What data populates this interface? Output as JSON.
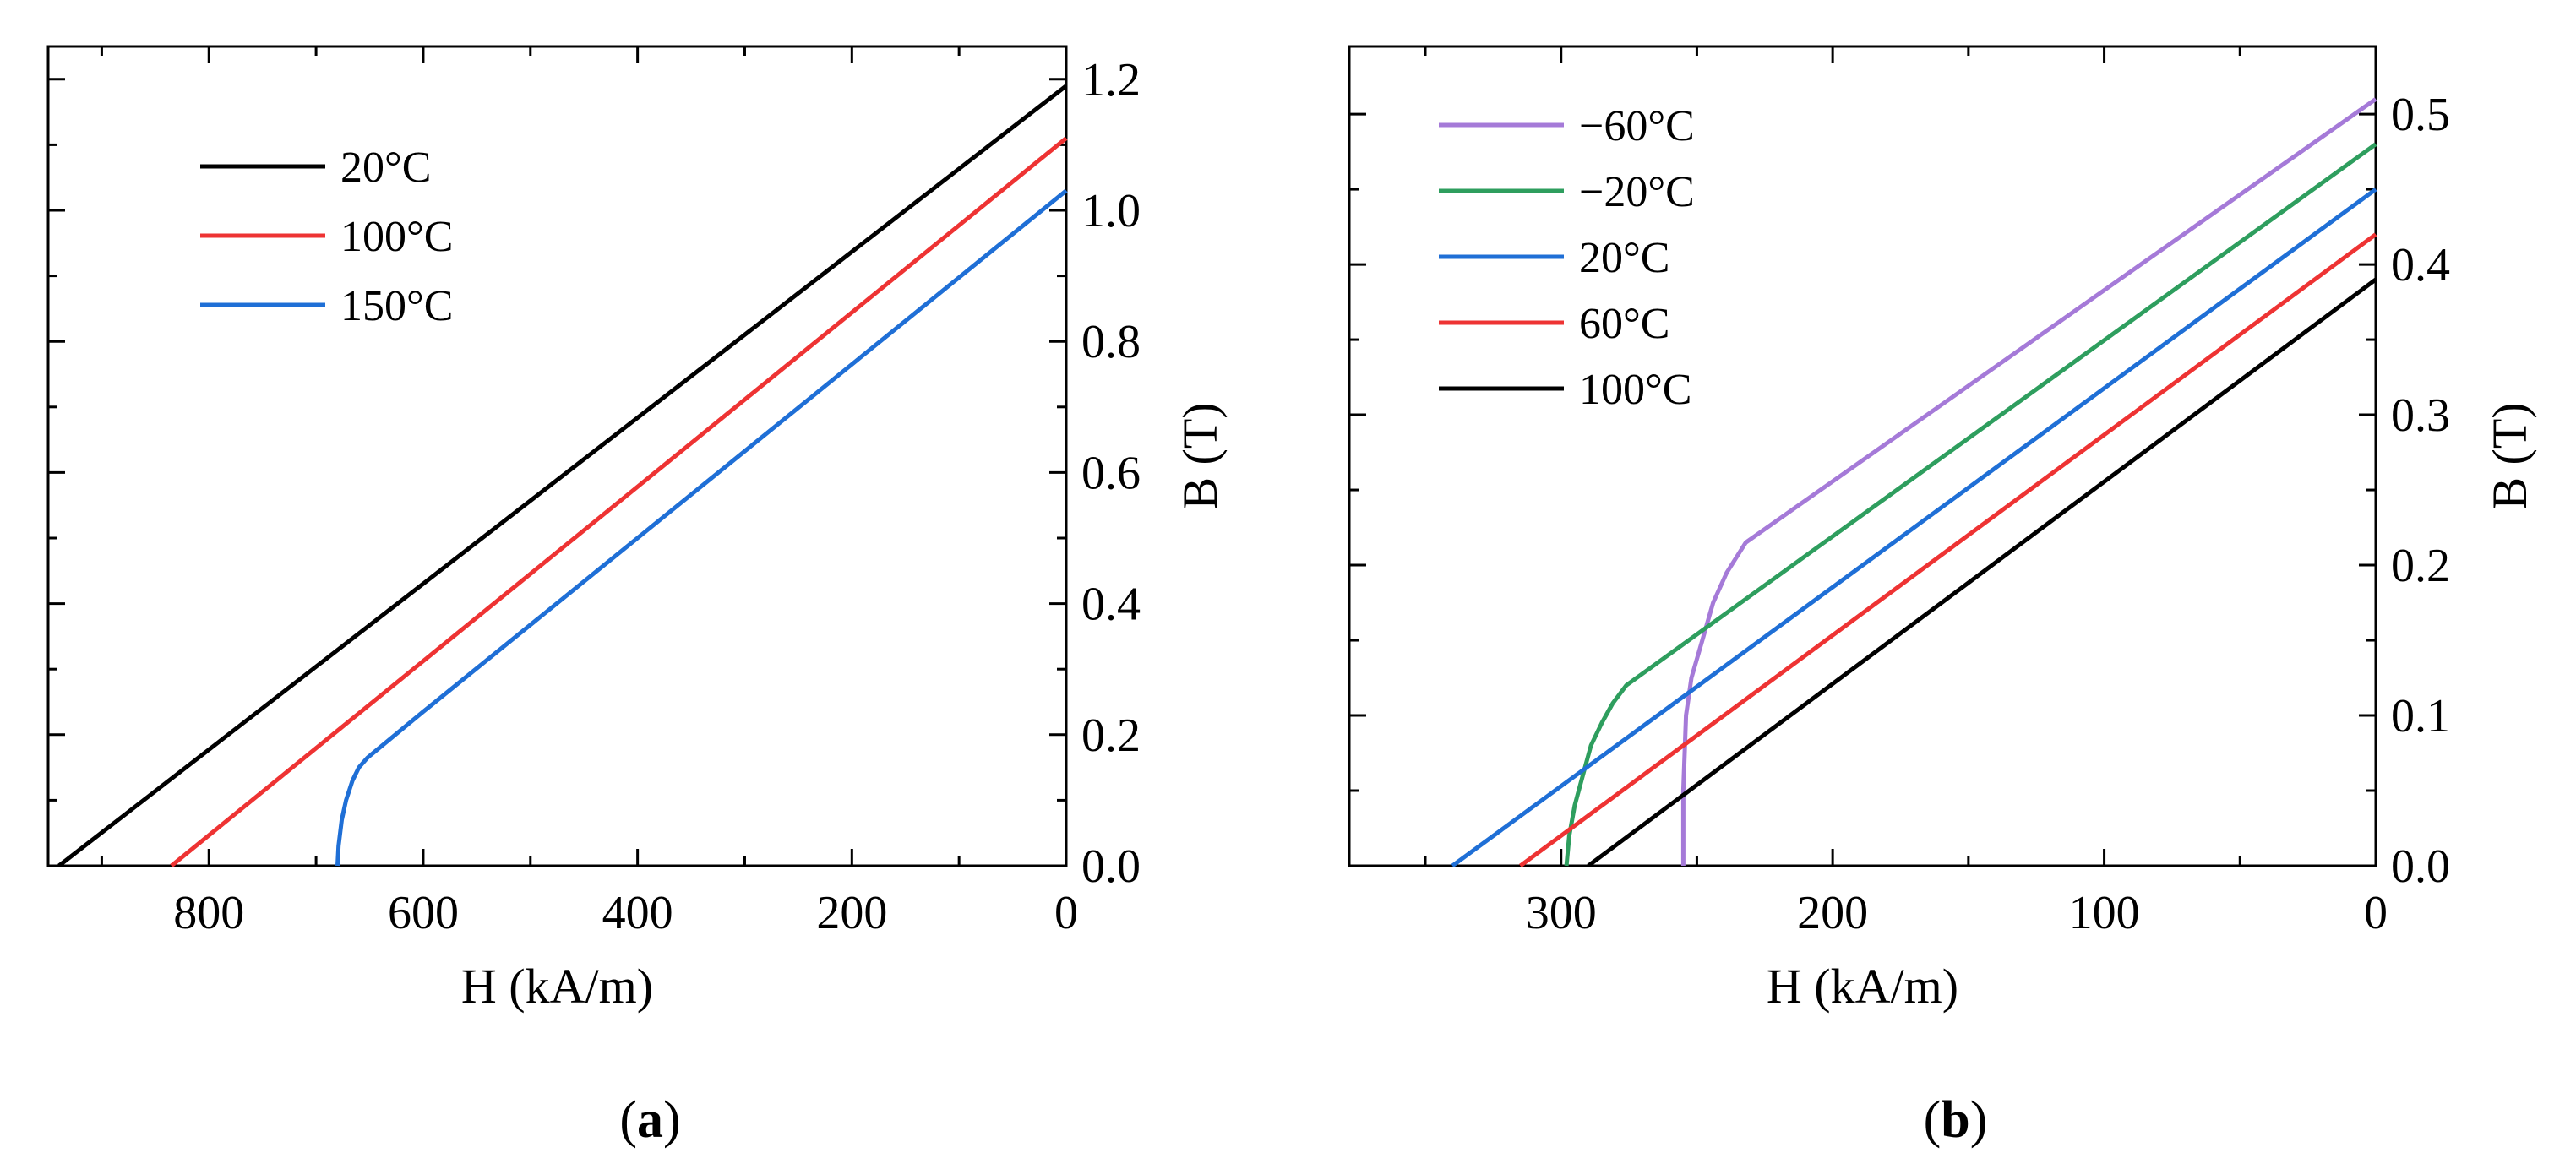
{
  "chart_data": [
    {
      "type": "line",
      "panel_label": "a",
      "xlabel": "H (kA/m)",
      "ylabel": "B (T)",
      "xlim": [
        950,
        0
      ],
      "ylim": [
        0,
        1.25
      ],
      "x_ticks": [
        "800",
        "600",
        "400",
        "200",
        "0"
      ],
      "x_tick_values": [
        800,
        600,
        400,
        200,
        0
      ],
      "x_minor_values": [
        900,
        700,
        500,
        300,
        100
      ],
      "y_ticks": [
        "0.0",
        "0.2",
        "0.4",
        "0.6",
        "0.8",
        "1.0",
        "1.2"
      ],
      "y_tick_values": [
        0,
        0.2,
        0.4,
        0.6,
        0.8,
        1.0,
        1.2
      ],
      "y_minor_values": [
        0.1,
        0.3,
        0.5,
        0.7,
        0.9,
        1.1
      ],
      "series": [
        {
          "name": "20°C",
          "color": "#000000",
          "x": [
            940,
            0
          ],
          "y": [
            0,
            1.19
          ]
        },
        {
          "name": "100°C",
          "color": "#ee3333",
          "x": [
            835,
            0
          ],
          "y": [
            0,
            1.11
          ]
        },
        {
          "name": "150°C",
          "color": "#1f6fd6",
          "x": [
            680,
            679,
            676,
            672,
            666,
            660,
            652,
            600,
            0
          ],
          "y": [
            0,
            0.03,
            0.07,
            0.1,
            0.13,
            0.15,
            0.165,
            0.235,
            1.03
          ]
        }
      ]
    },
    {
      "type": "line",
      "panel_label": "b",
      "xlabel": "H (kA/m)",
      "ylabel": "B (T)",
      "xlim": [
        378,
        0
      ],
      "ylim": [
        0,
        0.545
      ],
      "x_ticks": [
        "300",
        "200",
        "100",
        "0"
      ],
      "x_tick_values": [
        300,
        200,
        100,
        0
      ],
      "x_minor_values": [
        350,
        250,
        150,
        50
      ],
      "y_ticks": [
        "0.0",
        "0.1",
        "0.2",
        "0.3",
        "0.4",
        "0.5"
      ],
      "y_tick_values": [
        0,
        0.1,
        0.2,
        0.3,
        0.4,
        0.5
      ],
      "y_minor_values": [
        0.05,
        0.15,
        0.25,
        0.35,
        0.45
      ],
      "series": [
        {
          "name": "−60°C",
          "color": "#a57ad8",
          "x": [
            255,
            255,
            254,
            252,
            248,
            244,
            239,
            232,
            0
          ],
          "y": [
            0,
            0.05,
            0.1,
            0.125,
            0.15,
            0.175,
            0.195,
            0.215,
            0.51
          ]
        },
        {
          "name": "−20°C",
          "color": "#2e9e5e",
          "x": [
            298,
            297,
            295,
            292,
            289,
            285,
            281,
            276,
            0
          ],
          "y": [
            0,
            0.02,
            0.04,
            0.06,
            0.08,
            0.095,
            0.108,
            0.12,
            0.48
          ]
        },
        {
          "name": "20°C",
          "color": "#1f6fd6",
          "x": [
            340,
            0
          ],
          "y": [
            0,
            0.45
          ]
        },
        {
          "name": "60°C",
          "color": "#ee3333",
          "x": [
            315,
            0
          ],
          "y": [
            0,
            0.42
          ]
        },
        {
          "name": "100°C",
          "color": "#000000",
          "x": [
            290,
            0
          ],
          "y": [
            0,
            0.39
          ]
        }
      ]
    }
  ],
  "captions": [
    "(a)",
    "(b)"
  ]
}
